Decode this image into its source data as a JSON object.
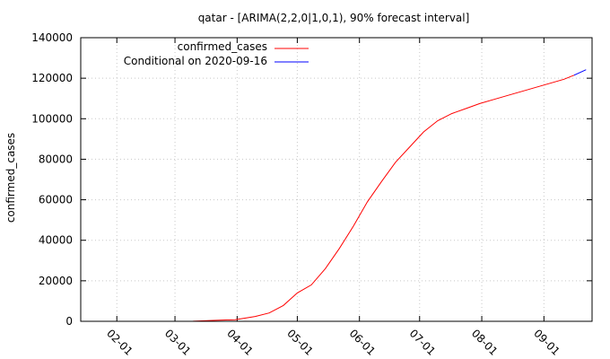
{
  "chart_data": {
    "type": "line",
    "title": "qatar -  [ARIMA(2,2,0|1,0,1), 90% forecast interval]",
    "xlabel": "",
    "ylabel": "confirmed_cases",
    "xlim": [
      "2020-01-14",
      "2020-09-25"
    ],
    "ylim": [
      0,
      140000
    ],
    "yticks": [
      "0",
      "20000",
      "40000",
      "60000",
      "80000",
      "100000",
      "120000",
      "140000"
    ],
    "xticks": [
      {
        "label": "02-01",
        "date": "2020-02-01"
      },
      {
        "label": "03-01",
        "date": "2020-03-01"
      },
      {
        "label": "04-01",
        "date": "2020-04-01"
      },
      {
        "label": "05-01",
        "date": "2020-05-01"
      },
      {
        "label": "06-01",
        "date": "2020-06-01"
      },
      {
        "label": "07-01",
        "date": "2020-07-01"
      },
      {
        "label": "08-01",
        "date": "2020-08-01"
      },
      {
        "label": "09-01",
        "date": "2020-09-01"
      }
    ],
    "grid": true,
    "legend_position": "top-left",
    "series": [
      {
        "name": "confirmed_cases",
        "color": "#ff0000",
        "points": [
          [
            "2020-02-29",
            1
          ],
          [
            "2020-03-10",
            24
          ],
          [
            "2020-03-20",
            460
          ],
          [
            "2020-03-31",
            780
          ],
          [
            "2020-04-10",
            2400
          ],
          [
            "2020-04-17",
            4100
          ],
          [
            "2020-04-24",
            7800
          ],
          [
            "2020-05-01",
            14000
          ],
          [
            "2020-05-08",
            18000
          ],
          [
            "2020-05-15",
            26000
          ],
          [
            "2020-05-22",
            36000
          ],
          [
            "2020-05-29",
            47000
          ],
          [
            "2020-06-05",
            59000
          ],
          [
            "2020-06-12",
            69000
          ],
          [
            "2020-06-19",
            78500
          ],
          [
            "2020-06-26",
            86000
          ],
          [
            "2020-07-03",
            93500
          ],
          [
            "2020-07-10",
            99000
          ],
          [
            "2020-07-17",
            102500
          ],
          [
            "2020-07-24",
            105000
          ],
          [
            "2020-07-31",
            107500
          ],
          [
            "2020-08-07",
            109500
          ],
          [
            "2020-08-14",
            111500
          ],
          [
            "2020-08-21",
            113500
          ],
          [
            "2020-08-28",
            115500
          ],
          [
            "2020-09-04",
            117500
          ],
          [
            "2020-09-11",
            119500
          ],
          [
            "2020-09-16",
            121500
          ]
        ]
      },
      {
        "name": "Conditional on 2020-09-16",
        "color": "#0000ff",
        "points": [
          [
            "2020-09-16",
            121500
          ],
          [
            "2020-09-22",
            124200
          ]
        ]
      }
    ]
  }
}
